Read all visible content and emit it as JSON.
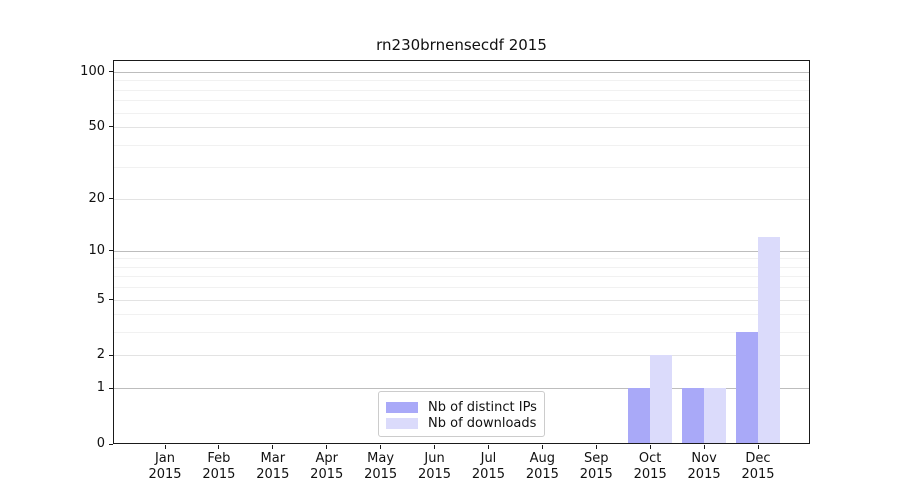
{
  "title": "rn230brnensecdf 2015",
  "colors": {
    "distinct_ips_bar": "#a9a9f8",
    "downloads_bar": "#dbdbfb",
    "grid_major": "#bdbdbd",
    "grid_mid": "#e3e3e3",
    "grid_minor": "#f1f1f1",
    "spine": "#1a1a1a",
    "text": "#111111"
  },
  "legend": {
    "position": "bottom-center-inside"
  },
  "chart_data": {
    "type": "bar",
    "title": "rn230brnensecdf 2015",
    "xlabel": "",
    "ylabel": "",
    "year": "2015",
    "months": [
      "Jan",
      "Feb",
      "Mar",
      "Apr",
      "May",
      "Jun",
      "Jul",
      "Aug",
      "Sep",
      "Oct",
      "Nov",
      "Dec"
    ],
    "categories": [
      "Jan 2015",
      "Feb 2015",
      "Mar 2015",
      "Apr 2015",
      "May 2015",
      "Jun 2015",
      "Jul 2015",
      "Aug 2015",
      "Sep 2015",
      "Oct 2015",
      "Nov 2015",
      "Dec 2015"
    ],
    "series": [
      {
        "key": "distinct-ips",
        "name": "Nb of distinct IPs",
        "color": "#a9a9f8",
        "values": [
          0,
          0,
          0,
          0,
          0,
          0,
          0,
          0,
          0,
          1,
          1,
          3
        ]
      },
      {
        "key": "downloads",
        "name": "Nb of downloads",
        "color": "#dbdbfb",
        "values": [
          0,
          0,
          0,
          0,
          0,
          0,
          0,
          0,
          0,
          2,
          1,
          12
        ]
      }
    ],
    "yscale": "log1p",
    "ylim": [
      0,
      116
    ],
    "yticks": [
      0,
      1,
      2,
      5,
      10,
      20,
      50,
      100
    ],
    "yticks_major": [
      1,
      10,
      100
    ],
    "yticks_mid": [
      2,
      5,
      20,
      50
    ],
    "yticks_minor": [
      3,
      4,
      6,
      7,
      8,
      9,
      30,
      40,
      60,
      70,
      80,
      90
    ],
    "grid": true,
    "legend_position": "lower center (inside axes)"
  }
}
